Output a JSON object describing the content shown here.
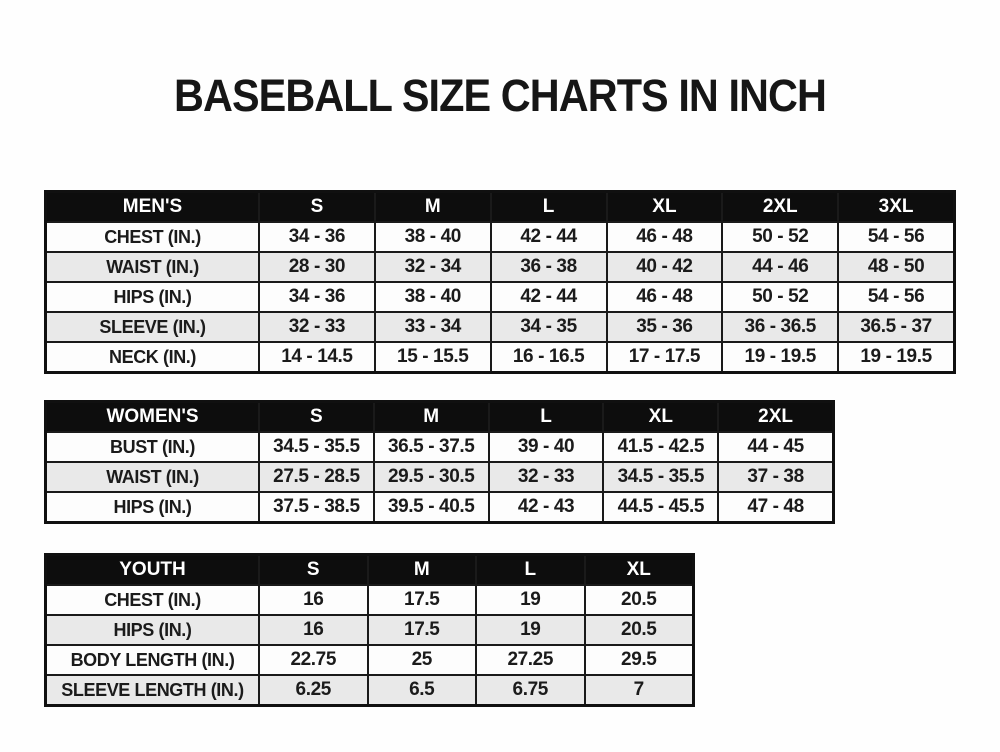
{
  "page": {
    "title": "BASEBALL SIZE CHARTS IN INCH",
    "unit": "inch"
  },
  "colors": {
    "background": "#ffffff",
    "table_header_bg": "#0d0d0d",
    "table_header_text": "#ffffff",
    "row_stripe": "#e9e9e9",
    "grid_line": "#1a1a1a",
    "text": "#1b1b1b"
  },
  "chart_data": [
    {
      "type": "table",
      "title": "MEN'S",
      "columns": [
        "S",
        "M",
        "L",
        "XL",
        "2XL",
        "3XL"
      ],
      "rows": [
        {
          "label": "CHEST (IN.)",
          "values": [
            "34 - 36",
            "38 - 40",
            "42 - 44",
            "46 - 48",
            "50 - 52",
            "54 - 56"
          ]
        },
        {
          "label": "WAIST (IN.)",
          "values": [
            "28 - 30",
            "32 - 34",
            "36 - 38",
            "40 - 42",
            "44 - 46",
            "48 - 50"
          ]
        },
        {
          "label": "HIPS (IN.)",
          "values": [
            "34 - 36",
            "38 - 40",
            "42 - 44",
            "46 - 48",
            "50 - 52",
            "54 - 56"
          ]
        },
        {
          "label": "SLEEVE (IN.)",
          "values": [
            "32 - 33",
            "33 - 34",
            "34 - 35",
            "35 - 36",
            "36 - 36.5",
            "36.5 - 37"
          ]
        },
        {
          "label": "NECK (IN.)",
          "values": [
            "14 - 14.5",
            "15 - 15.5",
            "16 - 16.5",
            "17 - 17.5",
            "19 - 19.5",
            "19 - 19.5"
          ]
        }
      ]
    },
    {
      "type": "table",
      "title": "WOMEN'S",
      "columns": [
        "S",
        "M",
        "L",
        "XL",
        "2XL"
      ],
      "rows": [
        {
          "label": "BUST (IN.)",
          "values": [
            "34.5 - 35.5",
            "36.5 - 37.5",
            "39 - 40",
            "41.5 - 42.5",
            "44 - 45"
          ]
        },
        {
          "label": "WAIST (IN.)",
          "values": [
            "27.5 - 28.5",
            "29.5 - 30.5",
            "32 - 33",
            "34.5 - 35.5",
            "37 - 38"
          ]
        },
        {
          "label": "HIPS (IN.)",
          "values": [
            "37.5 - 38.5",
            "39.5 - 40.5",
            "42 - 43",
            "44.5 - 45.5",
            "47 - 48"
          ]
        }
      ]
    },
    {
      "type": "table",
      "title": "YOUTH",
      "columns": [
        "S",
        "M",
        "L",
        "XL"
      ],
      "rows": [
        {
          "label": "CHEST (IN.)",
          "values": [
            "16",
            "17.5",
            "19",
            "20.5"
          ]
        },
        {
          "label": "HIPS (IN.)",
          "values": [
            "16",
            "17.5",
            "19",
            "20.5"
          ]
        },
        {
          "label": "BODY LENGTH (IN.)",
          "values": [
            "22.75",
            "25",
            "27.25",
            "29.5"
          ]
        },
        {
          "label": "SLEEVE LENGTH (IN.)",
          "values": [
            "6.25",
            "6.5",
            "6.75",
            "7"
          ]
        }
      ]
    }
  ]
}
